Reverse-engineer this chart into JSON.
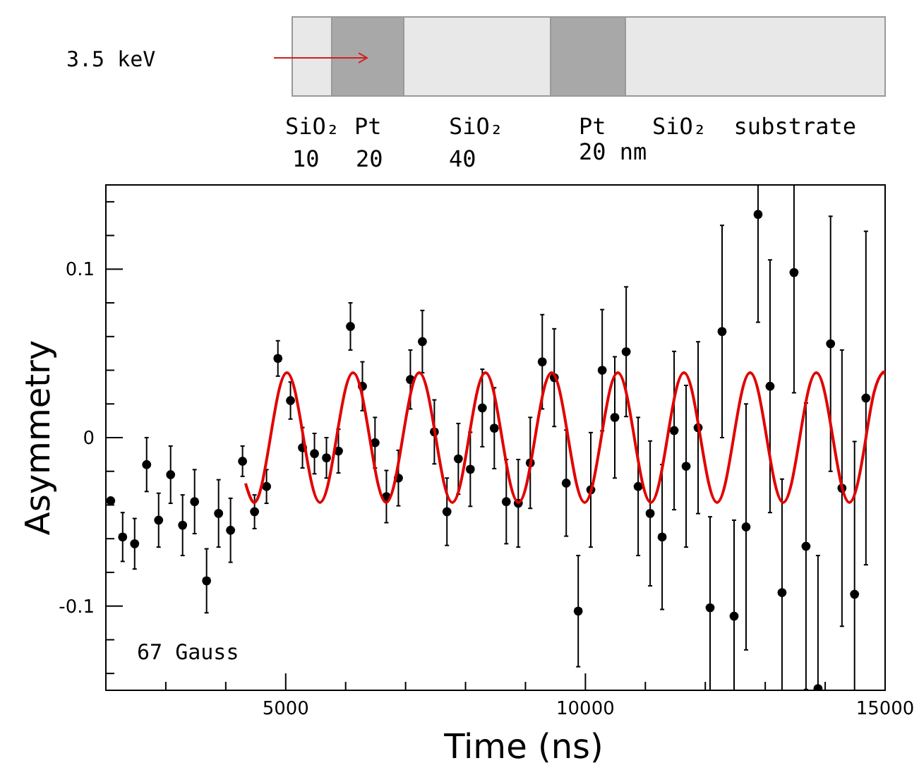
{
  "chart_data": {
    "type": "scatter",
    "xlabel": "Time (ns)",
    "ylabel": "Asymmetry",
    "xlim": [
      2000,
      15000
    ],
    "ylim": [
      -0.15,
      0.15
    ],
    "xticks": [
      {
        "value": 3000,
        "label": null
      },
      {
        "value": 4000,
        "label": null
      },
      5000,
      {
        "value": 6000,
        "label": null
      },
      {
        "value": 7000,
        "label": null
      },
      {
        "value": 8000,
        "label": null
      },
      {
        "value": 9000,
        "label": null
      },
      10000,
      {
        "value": 11000,
        "label": null
      },
      {
        "value": 12000,
        "label": null
      },
      {
        "value": 13000,
        "label": null
      },
      {
        "value": 14000,
        "label": null
      },
      15000
    ],
    "yticks": [
      {
        "value": -0.14,
        "label": null
      },
      {
        "value": -0.12,
        "label": null
      },
      {
        "value": -0.1,
        "label": "-0.1"
      },
      {
        "value": -0.08,
        "label": null
      },
      {
        "value": -0.06,
        "label": null
      },
      {
        "value": -0.04,
        "label": null
      },
      {
        "value": -0.02,
        "label": null
      },
      0,
      {
        "value": 0.02,
        "label": null
      },
      {
        "value": 0.04,
        "label": null
      },
      {
        "value": 0.06,
        "label": null
      },
      {
        "value": 0.08,
        "label": null
      },
      {
        "value": 0.1,
        "label": "0.1"
      },
      {
        "value": 0.12,
        "label": null
      },
      {
        "value": 0.14,
        "label": null
      }
    ],
    "grid": false,
    "annotations": [
      "67 Gauss",
      "3.5 keV",
      "SiO₂",
      "Pt",
      "SiO₂",
      "Pt",
      "SiO₂  substrate",
      "10",
      "20",
      "40",
      "20 nm"
    ],
    "series": [
      {
        "color": "#000000",
        "marker": "circle",
        "x": [
          2080,
          2280,
          2480,
          2680,
          2880,
          3080,
          3280,
          3480,
          3680,
          3880,
          4080,
          4280,
          4480,
          4680,
          4870,
          5080,
          5280,
          5480,
          5680,
          5880,
          6080,
          6280,
          6490,
          6680,
          6880,
          7080,
          7280,
          7480,
          7690,
          7880,
          8080,
          8280,
          8480,
          8680,
          8880,
          9080,
          9280,
          9480,
          9680,
          9880,
          10090,
          10280,
          10490,
          10680,
          10880,
          11080,
          11280,
          11480,
          11680,
          11880,
          12080,
          12280,
          12480,
          12680,
          12880,
          13080,
          13280,
          13480,
          13680,
          13880,
          14090,
          14280,
          14490,
          14680
        ],
        "values": [
          -0.0375,
          -0.059,
          -0.063,
          -0.016,
          -0.049,
          -0.022,
          -0.052,
          -0.038,
          -0.085,
          -0.045,
          -0.055,
          -0.014,
          -0.044,
          -0.029,
          0.047,
          0.022,
          -0.006,
          -0.0095,
          -0.012,
          -0.008,
          0.066,
          0.0305,
          -0.003,
          -0.035,
          -0.024,
          0.0345,
          0.057,
          0.0034,
          -0.044,
          -0.0126,
          -0.0188,
          0.0176,
          0.0056,
          -0.038,
          -0.039,
          -0.015,
          0.045,
          0.0356,
          -0.027,
          -0.103,
          -0.031,
          0.04,
          0.012,
          0.051,
          -0.029,
          -0.045,
          -0.059,
          0.0042,
          -0.017,
          0.0059,
          -0.101,
          0.063,
          -0.106,
          -0.053,
          0.1325,
          0.0305,
          -0.092,
          0.098,
          -0.0645,
          -0.149,
          0.0557,
          -0.03,
          -0.093,
          0.0235
        ],
        "errors": [
          null,
          0.0145,
          0.015,
          0.016,
          0.016,
          0.017,
          0.018,
          0.019,
          0.019,
          0.02,
          0.019,
          0.009,
          0.01,
          0.01,
          0.0105,
          0.011,
          0.012,
          0.012,
          0.012,
          0.013,
          0.014,
          0.0145,
          0.015,
          0.0155,
          0.0165,
          0.0175,
          0.0185,
          0.019,
          0.02,
          0.021,
          0.022,
          0.023,
          0.024,
          0.025,
          0.026,
          0.027,
          0.028,
          0.029,
          0.0315,
          0.033,
          0.034,
          0.036,
          0.036,
          0.0385,
          0.041,
          0.043,
          0.043,
          0.047,
          0.048,
          0.051,
          [
            -0.15,
            -0.047
          ],
          0.063,
          [
            -0.15,
            -0.049
          ],
          0.073,
          [
            0.0685,
            0.15
          ],
          0.075,
          [
            -0.15,
            -0.0246
          ],
          [
            0.0266,
            0.15
          ],
          0.085,
          [
            -0.15,
            -0.07
          ],
          0.0757,
          0.082,
          [
            -0.15,
            -0.0023
          ],
          0.099
        ]
      },
      {
        "type": "line",
        "color": "#e00000",
        "marker": "none",
        "line_style": "solid",
        "x": [
          4330,
          4468,
          4606,
          4744,
          4882,
          5020,
          5158,
          5296,
          5434,
          5572,
          5710,
          5848,
          5986,
          6124,
          6262,
          6400,
          6538,
          6676,
          6814,
          6952,
          7090,
          7228,
          7366,
          7504,
          7642,
          7780,
          7918,
          8056,
          8194,
          8332,
          8470,
          8608,
          8746,
          8884,
          9022,
          9160,
          9298,
          9436,
          9574,
          9712,
          9850,
          9988,
          10126,
          10264,
          10402,
          10540,
          10678,
          10816,
          10954,
          11092,
          11230,
          11368,
          11506,
          11644,
          11782,
          11920,
          12058,
          12196,
          12334,
          12472,
          12610,
          12748,
          12886,
          13024,
          13162,
          13300,
          13438,
          13576,
          13714,
          13852,
          13990,
          14128,
          14266,
          14404,
          14542,
          14680,
          14818,
          14956,
          15000
        ],
        "values": [
          -0.0272,
          -0.0385,
          -0.0272,
          0,
          0.0272,
          0.0385,
          0.0272,
          0,
          -0.0272,
          -0.0385,
          -0.0272,
          0,
          0.0272,
          0.0385,
          0.0272,
          0,
          -0.0272,
          -0.0385,
          -0.0272,
          0,
          0.0272,
          0.0385,
          0.0272,
          0,
          -0.0272,
          -0.0385,
          -0.0272,
          0,
          0.0272,
          0.0385,
          0.0272,
          0,
          -0.0272,
          -0.0385,
          -0.0272,
          0,
          0.0272,
          0.0385,
          0.0272,
          0,
          -0.0272,
          -0.0385,
          -0.0272,
          0,
          0.0272,
          0.0385,
          0.0272,
          0,
          -0.0272,
          -0.0385,
          -0.0272,
          0,
          0.0272,
          0.0385,
          0.0272,
          0,
          -0.0272,
          -0.0385,
          -0.0272,
          0,
          0.0272,
          0.0385,
          0.0272,
          0,
          -0.0272,
          -0.0385,
          -0.0272,
          0,
          0.0272,
          0.0385,
          0.0272,
          0,
          -0.0272,
          -0.0385,
          -0.0272,
          0,
          0.0272,
          0.0385,
          0.0373
        ]
      }
    ]
  }
}
